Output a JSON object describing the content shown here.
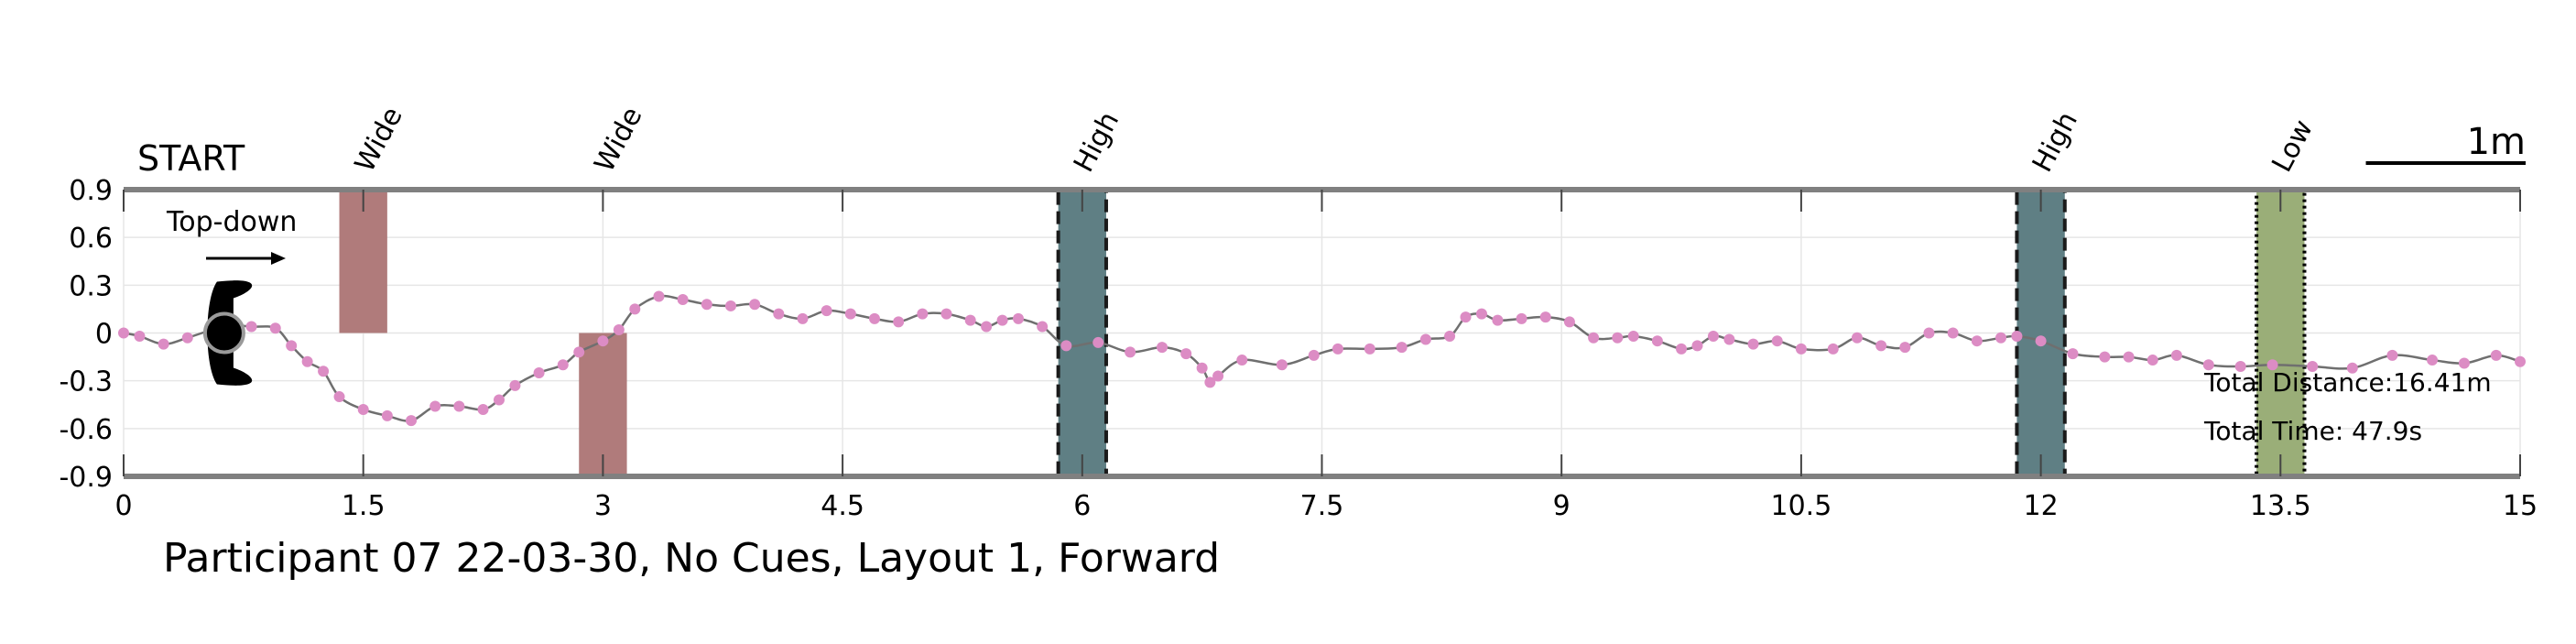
{
  "chart_data": {
    "type": "line",
    "title": "Participant 07 22-03-30, No Cues, Layout 1, Forward",
    "xlabel": "",
    "ylabel": "",
    "xlim": [
      0,
      15
    ],
    "ylim": [
      -0.9,
      0.9
    ],
    "x_ticks": [
      0,
      1.5,
      3,
      4.5,
      6,
      7.5,
      9,
      10.5,
      12,
      13.5,
      15
    ],
    "y_ticks": [
      0.9,
      0.6,
      0.3,
      0,
      -0.3,
      -0.6,
      -0.9
    ],
    "x_tick_labels": [
      "0",
      "1.5",
      "3",
      "4.5",
      "6",
      "7.5",
      "9",
      "10.5",
      "12",
      "13.5",
      "15"
    ],
    "y_tick_labels": [
      "0.9",
      "0.6",
      "0.3",
      "0",
      "-0.3",
      "-0.6",
      "-0.9"
    ],
    "grid": true,
    "start_label": "START",
    "direction_label": "Top-down",
    "scale_label": "1m",
    "scale_length": 1,
    "info": {
      "distance": "Total Distance:16.41m",
      "time": "Total Time: 47.9s"
    },
    "colors": {
      "path_line": "#6f6f6f",
      "path_points": "#dc8cc4",
      "wide": "#b07b7b",
      "high": "#5f7f84",
      "low": "#9aae78",
      "frame": "#808080"
    },
    "obstacles": [
      {
        "label": "Wide",
        "type": "wide",
        "x0": 1.35,
        "x1": 1.65,
        "y0": 0,
        "y1": 0.9
      },
      {
        "label": "Wide",
        "type": "wide",
        "x0": 2.85,
        "x1": 3.15,
        "y0": -0.9,
        "y1": 0
      },
      {
        "label": "High",
        "type": "high",
        "x0": 5.85,
        "x1": 6.15,
        "y0": -0.9,
        "y1": 0.9
      },
      {
        "label": "High",
        "type": "high",
        "x0": 11.85,
        "x1": 12.15,
        "y0": -0.9,
        "y1": 0.9
      },
      {
        "label": "Low",
        "type": "low",
        "x0": 13.35,
        "x1": 13.65,
        "y0": -0.9,
        "y1": 0.9
      }
    ],
    "series": [
      {
        "x": [
          0,
          0.1,
          0.25,
          0.4,
          0.55,
          0.65,
          0.8,
          0.95,
          1.05,
          1.15,
          1.25,
          1.35,
          1.5,
          1.65,
          1.8,
          1.95,
          2.1,
          2.25,
          2.35,
          2.45,
          2.6,
          2.75,
          2.85,
          3.0,
          3.1,
          3.2,
          3.35,
          3.5,
          3.65,
          3.8,
          3.95,
          4.1,
          4.25,
          4.4,
          4.55,
          4.7,
          4.85,
          5.0,
          5.15,
          5.3,
          5.4,
          5.5,
          5.6,
          5.75,
          5.9,
          6.1,
          6.3,
          6.5,
          6.65,
          6.75,
          6.8,
          6.85,
          7.0,
          7.25,
          7.45,
          7.6,
          7.8,
          8.0,
          8.15,
          8.3,
          8.4,
          8.5,
          8.6,
          8.75,
          8.9,
          9.05,
          9.2,
          9.35,
          9.45,
          9.6,
          9.75,
          9.85,
          9.95,
          10.05,
          10.2,
          10.35,
          10.5,
          10.7,
          10.85,
          11.0,
          11.15,
          11.3,
          11.45,
          11.6,
          11.75,
          11.85,
          12.0,
          12.2,
          12.4,
          12.55,
          12.7,
          12.85,
          13.05,
          13.25,
          13.45,
          13.7,
          13.95,
          14.2,
          14.45,
          14.65,
          14.85,
          15.0
        ],
        "y": [
          0,
          -0.02,
          -0.07,
          -0.03,
          0.02,
          0.05,
          0.04,
          0.03,
          -0.08,
          -0.18,
          -0.24,
          -0.4,
          -0.48,
          -0.52,
          -0.55,
          -0.46,
          -0.46,
          -0.48,
          -0.42,
          -0.33,
          -0.25,
          -0.2,
          -0.12,
          -0.05,
          0.02,
          0.15,
          0.23,
          0.21,
          0.18,
          0.17,
          0.18,
          0.12,
          0.09,
          0.14,
          0.12,
          0.09,
          0.07,
          0.12,
          0.12,
          0.08,
          0.04,
          0.08,
          0.09,
          0.04,
          -0.08,
          -0.06,
          -0.12,
          -0.09,
          -0.13,
          -0.22,
          -0.31,
          -0.27,
          -0.17,
          -0.2,
          -0.14,
          -0.1,
          -0.1,
          -0.09,
          -0.04,
          -0.02,
          0.1,
          0.12,
          0.08,
          0.09,
          0.1,
          0.07,
          -0.03,
          -0.03,
          -0.02,
          -0.05,
          -0.1,
          -0.08,
          -0.02,
          -0.04,
          -0.07,
          -0.05,
          -0.1,
          -0.1,
          -0.03,
          -0.08,
          -0.09,
          0.0,
          0.0,
          -0.05,
          -0.03,
          -0.02,
          -0.05,
          -0.13,
          -0.15,
          -0.15,
          -0.17,
          -0.14,
          -0.2,
          -0.21,
          -0.2,
          -0.21,
          -0.22,
          -0.14,
          -0.17,
          -0.19,
          -0.14,
          -0.18
        ]
      }
    ]
  }
}
